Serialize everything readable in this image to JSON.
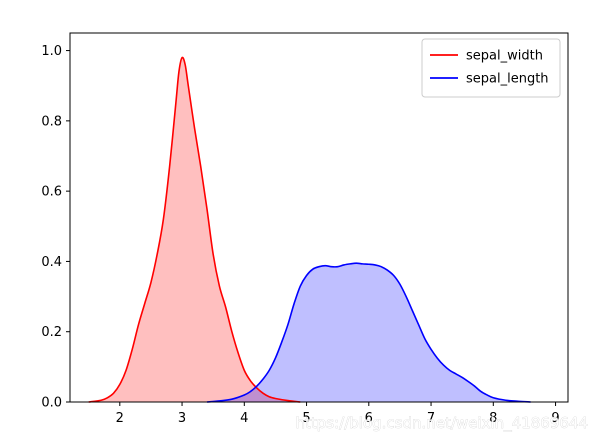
{
  "chart_data": {
    "type": "area",
    "xlim": [
      1.2,
      9.2
    ],
    "ylim": [
      0,
      1.05
    ],
    "x_ticks": [
      2,
      3,
      4,
      5,
      6,
      7,
      8,
      9
    ],
    "y_ticks": [
      0.0,
      0.2,
      0.4,
      0.6,
      0.8,
      1.0
    ],
    "x_tick_labels": [
      "2",
      "3",
      "4",
      "5",
      "6",
      "7",
      "8",
      "9"
    ],
    "y_tick_labels": [
      "0.0",
      "0.2",
      "0.4",
      "0.6",
      "0.8",
      "1.0"
    ],
    "grid": false,
    "legend_position": "top-right",
    "series": [
      {
        "name": "sepal_width",
        "color": "#ff0000",
        "fill_color": "#ffbfbf",
        "points": [
          [
            1.5,
            0.0
          ],
          [
            1.7,
            0.005
          ],
          [
            1.8,
            0.012
          ],
          [
            1.9,
            0.025
          ],
          [
            2.0,
            0.05
          ],
          [
            2.1,
            0.09
          ],
          [
            2.2,
            0.15
          ],
          [
            2.3,
            0.22
          ],
          [
            2.4,
            0.28
          ],
          [
            2.5,
            0.34
          ],
          [
            2.6,
            0.42
          ],
          [
            2.7,
            0.52
          ],
          [
            2.8,
            0.67
          ],
          [
            2.9,
            0.85
          ],
          [
            2.95,
            0.94
          ],
          [
            3.0,
            0.98
          ],
          [
            3.05,
            0.96
          ],
          [
            3.1,
            0.9
          ],
          [
            3.2,
            0.78
          ],
          [
            3.3,
            0.67
          ],
          [
            3.4,
            0.55
          ],
          [
            3.5,
            0.42
          ],
          [
            3.6,
            0.33
          ],
          [
            3.7,
            0.27
          ],
          [
            3.8,
            0.2
          ],
          [
            3.9,
            0.14
          ],
          [
            4.0,
            0.09
          ],
          [
            4.1,
            0.06
          ],
          [
            4.2,
            0.04
          ],
          [
            4.3,
            0.025
          ],
          [
            4.4,
            0.015
          ],
          [
            4.5,
            0.01
          ],
          [
            4.7,
            0.004
          ],
          [
            4.9,
            0.0
          ]
        ]
      },
      {
        "name": "sepal_length",
        "color": "#0000ff",
        "fill_color": "#bfbfff",
        "points": [
          [
            3.4,
            0.0
          ],
          [
            3.6,
            0.003
          ],
          [
            3.8,
            0.008
          ],
          [
            4.0,
            0.02
          ],
          [
            4.1,
            0.03
          ],
          [
            4.2,
            0.045
          ],
          [
            4.3,
            0.065
          ],
          [
            4.4,
            0.09
          ],
          [
            4.5,
            0.125
          ],
          [
            4.6,
            0.17
          ],
          [
            4.7,
            0.22
          ],
          [
            4.8,
            0.28
          ],
          [
            4.9,
            0.33
          ],
          [
            5.0,
            0.36
          ],
          [
            5.1,
            0.378
          ],
          [
            5.2,
            0.385
          ],
          [
            5.3,
            0.388
          ],
          [
            5.4,
            0.385
          ],
          [
            5.5,
            0.385
          ],
          [
            5.6,
            0.39
          ],
          [
            5.7,
            0.393
          ],
          [
            5.8,
            0.395
          ],
          [
            5.9,
            0.393
          ],
          [
            6.0,
            0.392
          ],
          [
            6.1,
            0.39
          ],
          [
            6.2,
            0.385
          ],
          [
            6.3,
            0.375
          ],
          [
            6.4,
            0.36
          ],
          [
            6.5,
            0.335
          ],
          [
            6.6,
            0.3
          ],
          [
            6.7,
            0.26
          ],
          [
            6.8,
            0.22
          ],
          [
            6.9,
            0.18
          ],
          [
            7.0,
            0.15
          ],
          [
            7.1,
            0.125
          ],
          [
            7.2,
            0.105
          ],
          [
            7.3,
            0.09
          ],
          [
            7.4,
            0.08
          ],
          [
            7.5,
            0.07
          ],
          [
            7.6,
            0.058
          ],
          [
            7.7,
            0.045
          ],
          [
            7.8,
            0.03
          ],
          [
            7.9,
            0.02
          ],
          [
            8.0,
            0.012
          ],
          [
            8.2,
            0.005
          ],
          [
            8.4,
            0.002
          ],
          [
            8.6,
            0.0
          ]
        ]
      }
    ]
  },
  "watermark": "https://blog.csdn.net/weixin_41869644"
}
